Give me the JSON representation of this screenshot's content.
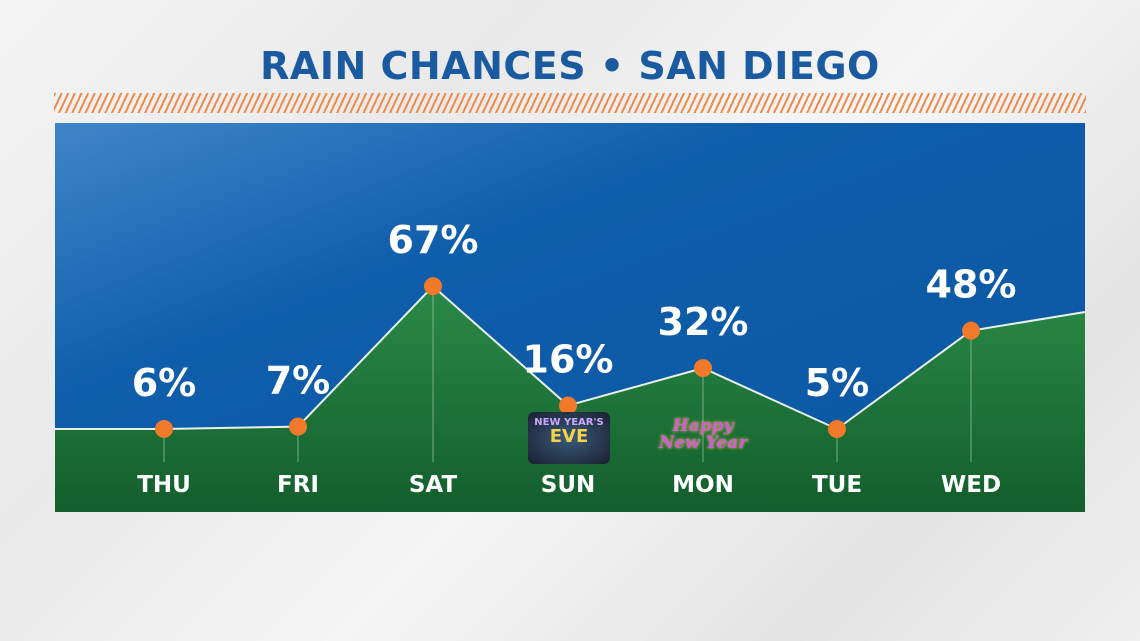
{
  "title": "RAIN CHANCES • SAN DIEGO",
  "colors": {
    "title": "#1a5aa0",
    "stripe": "#f08a4b",
    "sky": "#0f5eab",
    "ground": "#1f7a3c",
    "point": "#f07a2a"
  },
  "badges": {
    "sun_line1": "NEW YEAR'S",
    "sun_line2": "EVE",
    "mon": "Happy New Year"
  },
  "chart_data": {
    "type": "area",
    "title": "RAIN CHANCES • SAN DIEGO",
    "categories": [
      "THU",
      "FRI",
      "SAT",
      "SUN",
      "MON",
      "TUE",
      "WED"
    ],
    "values": [
      6,
      7,
      67,
      16,
      32,
      5,
      48
    ],
    "labels": [
      "6%",
      "7%",
      "67%",
      "16%",
      "32%",
      "5%",
      "48%"
    ],
    "unit": "%",
    "grid": false
  }
}
